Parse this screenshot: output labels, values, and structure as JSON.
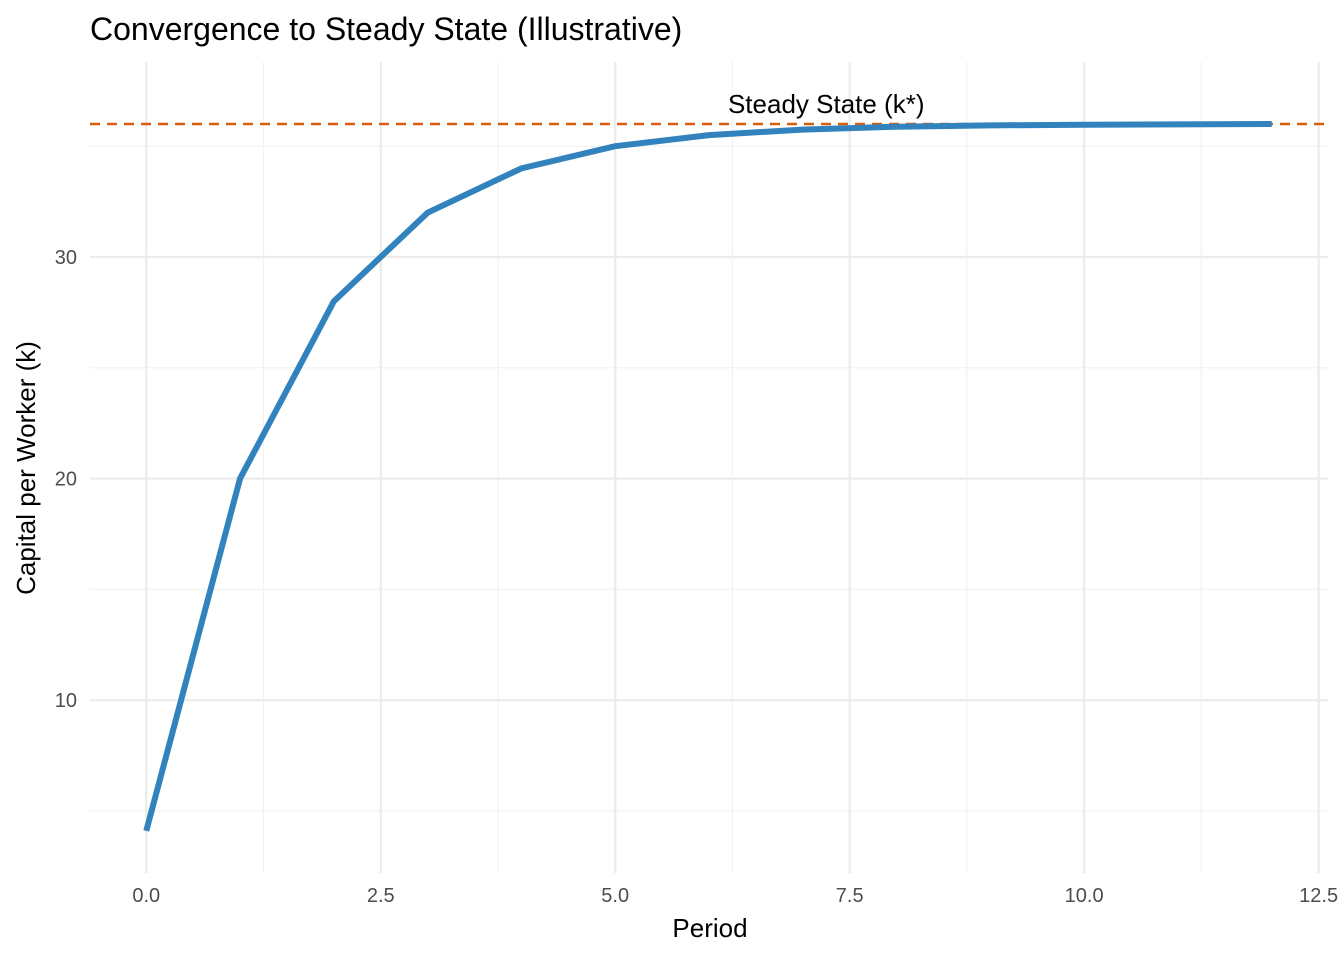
{
  "chart_data": {
    "type": "line",
    "title": "Convergence to Steady State (Illustrative)",
    "xlabel": "Period",
    "ylabel": "Capital per Worker (k)",
    "x": [
      0,
      1,
      2,
      3,
      4,
      5,
      6,
      7,
      8,
      9,
      10,
      11,
      12
    ],
    "series": [
      {
        "values": [
          4.1,
          20.0,
          28.0,
          32.0,
          34.0,
          35.0,
          35.5,
          35.75,
          35.88,
          35.94,
          35.97,
          35.985,
          36.0
        ],
        "color": "#3182bd"
      }
    ],
    "reference_line": {
      "y": 36.0,
      "label": "Steady State (k*)",
      "style": "dashed",
      "color": "#d95f0e"
    },
    "xlim": [
      -0.6,
      12.6
    ],
    "ylim": [
      2.2,
      38.8
    ],
    "x_ticks": [
      0,
      2.5,
      5,
      7.5,
      10,
      12.5
    ],
    "x_tick_labels": [
      "0.0",
      "2.5",
      "5.0",
      "7.5",
      "10.0",
      "12.5"
    ],
    "y_ticks": [
      10,
      20,
      30
    ],
    "y_tick_labels": [
      "10",
      "20",
      "30"
    ],
    "x_minor_ticks": [
      1.25,
      3.75,
      6.25,
      8.75,
      11.25
    ],
    "y_minor_ticks": [
      5,
      15,
      25,
      35
    ],
    "grid": true,
    "legend": "none"
  }
}
